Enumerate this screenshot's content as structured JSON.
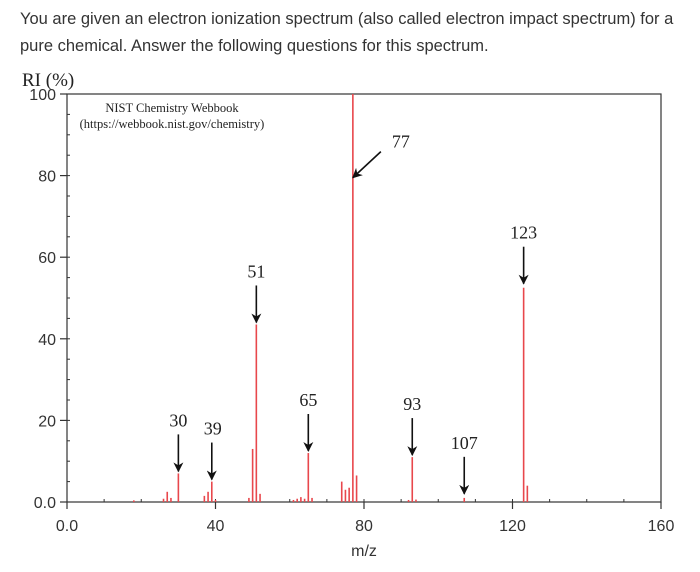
{
  "question": {
    "text": "You are given an electron ionization spectrum (also called electron impact spectrum) for a pure chemical.  Answer the following questions for this spectrum."
  },
  "chart_data": {
    "type": "bar",
    "ylabel": "RI (%)",
    "xlabel": "m/z",
    "source_line1": "NIST Chemistry Webbook",
    "source_line2": "(https://webbook.nist.gov/chemistry)",
    "xlim": [
      0,
      160
    ],
    "ylim": [
      0,
      100
    ],
    "x_ticks": [
      {
        "value": 0,
        "label": "0.0"
      },
      {
        "value": 40,
        "label": "40"
      },
      {
        "value": 80,
        "label": "80"
      },
      {
        "value": 120,
        "label": "120"
      },
      {
        "value": 160,
        "label": "160"
      }
    ],
    "y_ticks": [
      {
        "value": 0,
        "label": "0.0"
      },
      {
        "value": 20,
        "label": "20"
      },
      {
        "value": 40,
        "label": "40"
      },
      {
        "value": 60,
        "label": "60"
      },
      {
        "value": 80,
        "label": "80"
      },
      {
        "value": 100,
        "label": "100"
      }
    ],
    "bar_color": "#e8474c",
    "peaks": [
      {
        "mz": 18,
        "ri": 0.4
      },
      {
        "mz": 26,
        "ri": 0.8
      },
      {
        "mz": 27,
        "ri": 2.5
      },
      {
        "mz": 28,
        "ri": 1.0
      },
      {
        "mz": 30,
        "ri": 7.0
      },
      {
        "mz": 37,
        "ri": 1.5
      },
      {
        "mz": 38,
        "ri": 2.5
      },
      {
        "mz": 39,
        "ri": 5.0
      },
      {
        "mz": 40,
        "ri": 0.5
      },
      {
        "mz": 49,
        "ri": 1.0
      },
      {
        "mz": 50,
        "ri": 13.0
      },
      {
        "mz": 51,
        "ri": 43.5
      },
      {
        "mz": 52,
        "ri": 2.0
      },
      {
        "mz": 61,
        "ri": 0.5
      },
      {
        "mz": 62,
        "ri": 0.8
      },
      {
        "mz": 63,
        "ri": 1.2
      },
      {
        "mz": 64,
        "ri": 0.8
      },
      {
        "mz": 65,
        "ri": 12.0
      },
      {
        "mz": 66,
        "ri": 1.0
      },
      {
        "mz": 74,
        "ri": 5.0
      },
      {
        "mz": 75,
        "ri": 3.0
      },
      {
        "mz": 76,
        "ri": 3.5
      },
      {
        "mz": 77,
        "ri": 100.0
      },
      {
        "mz": 78,
        "ri": 6.5
      },
      {
        "mz": 92,
        "ri": 0.5
      },
      {
        "mz": 93,
        "ri": 11.0
      },
      {
        "mz": 94,
        "ri": 0.6
      },
      {
        "mz": 107,
        "ri": 1.0
      },
      {
        "mz": 123,
        "ri": 52.5
      },
      {
        "mz": 124,
        "ri": 4.0
      }
    ],
    "annotations": [
      {
        "label": "30",
        "mz": 30,
        "arrow_tip_ri": 7.5
      },
      {
        "label": "39",
        "mz": 39,
        "arrow_tip_ri": 5.5
      },
      {
        "label": "51",
        "mz": 51,
        "arrow_tip_ri": 44.0
      },
      {
        "label": "65",
        "mz": 65,
        "arrow_tip_ri": 12.5
      },
      {
        "label": "77",
        "mz": 77,
        "arrow_tip_ri": 79.5,
        "diagonal": true
      },
      {
        "label": "93",
        "mz": 93,
        "arrow_tip_ri": 11.5
      },
      {
        "label": "107",
        "mz": 107,
        "arrow_tip_ri": 2.0
      },
      {
        "label": "123",
        "mz": 123,
        "arrow_tip_ri": 53.5
      }
    ]
  }
}
